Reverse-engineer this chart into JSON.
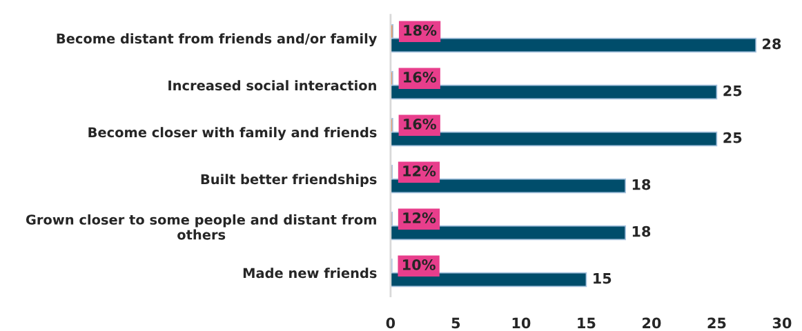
{
  "chart_data": {
    "type": "bar",
    "orientation": "horizontal",
    "categories": [
      "Become distant from friends and/or family",
      "Increased social interaction",
      "Become closer with family and friends",
      "Built better friendships",
      "Grown closer to some people and distant from others",
      "Made new friends"
    ],
    "series": [
      {
        "color": "#ed7d31",
        "values": [
          0.18,
          0.16,
          0.16,
          0.12,
          0.12,
          0.1
        ],
        "value_labels": [
          "18%",
          "16%",
          "16%",
          "12%",
          "12%",
          "10%"
        ]
      },
      {
        "color": "#004d6b",
        "values": [
          28,
          25,
          25,
          18,
          18,
          15
        ],
        "data_labels": true
      }
    ],
    "xlim": [
      0,
      30
    ],
    "xticks": [
      0,
      5,
      10,
      15,
      20,
      25,
      30
    ],
    "grid": false,
    "legend": false
  }
}
